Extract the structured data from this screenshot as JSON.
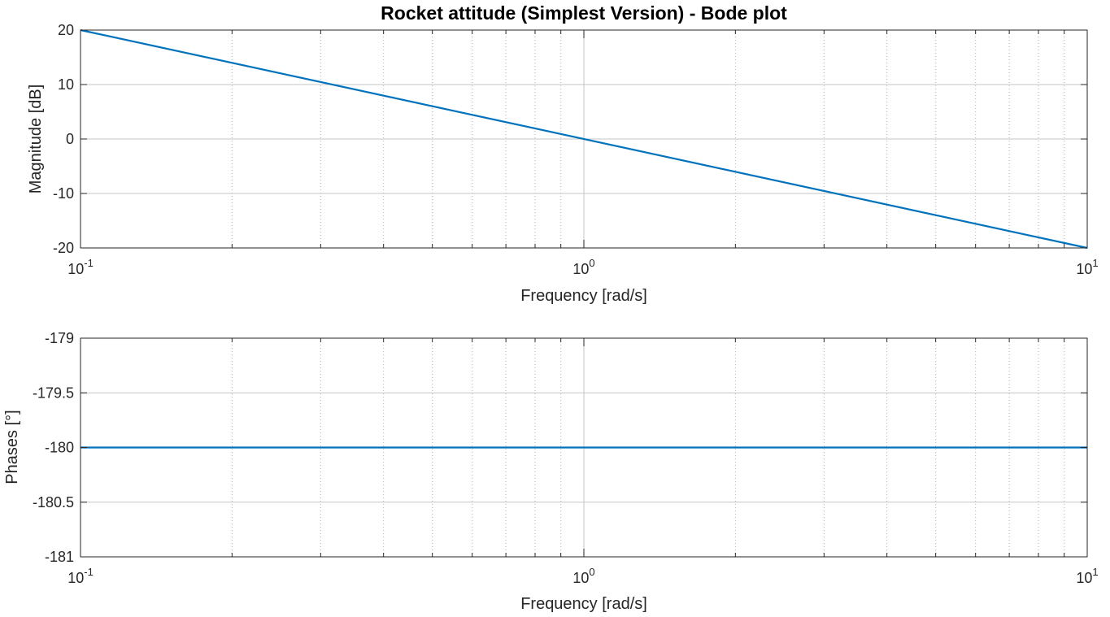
{
  "chart_data": [
    {
      "type": "line",
      "title": "Rocket attitude (Simplest Version) - Bode plot",
      "xlabel": "Frequency [rad/s]",
      "ylabel": "Magnitude [dB]",
      "xscale": "log",
      "xlim": [
        0.1,
        10
      ],
      "ylim": [
        -20,
        20
      ],
      "xticks": [
        {
          "base": "10",
          "exp": "-1"
        },
        {
          "base": "10",
          "exp": "0"
        },
        {
          "base": "10",
          "exp": "1"
        }
      ],
      "yticks": [
        "20",
        "10",
        "0",
        "-10",
        "-20"
      ],
      "ytick_values": [
        20,
        10,
        0,
        -10,
        -20
      ],
      "grid": true,
      "line_color": "#0072bd",
      "series": [
        {
          "x": [
            0.1,
            10
          ],
          "y": [
            20,
            -20
          ]
        }
      ]
    },
    {
      "type": "line",
      "title": "",
      "xlabel": "Frequency [rad/s]",
      "ylabel": "Phases [°]",
      "xscale": "log",
      "xlim": [
        0.1,
        10
      ],
      "ylim": [
        -181,
        -179
      ],
      "xticks": [
        {
          "base": "10",
          "exp": "-1"
        },
        {
          "base": "10",
          "exp": "0"
        },
        {
          "base": "10",
          "exp": "1"
        }
      ],
      "yticks": [
        "-179",
        "-179.5",
        "-180",
        "-180.5",
        "-181"
      ],
      "ytick_values": [
        -179,
        -179.5,
        -180,
        -180.5,
        -181
      ],
      "grid": true,
      "line_color": "#0072bd",
      "series": [
        {
          "x": [
            0.1,
            10
          ],
          "y": [
            -180,
            -180
          ]
        }
      ]
    }
  ]
}
